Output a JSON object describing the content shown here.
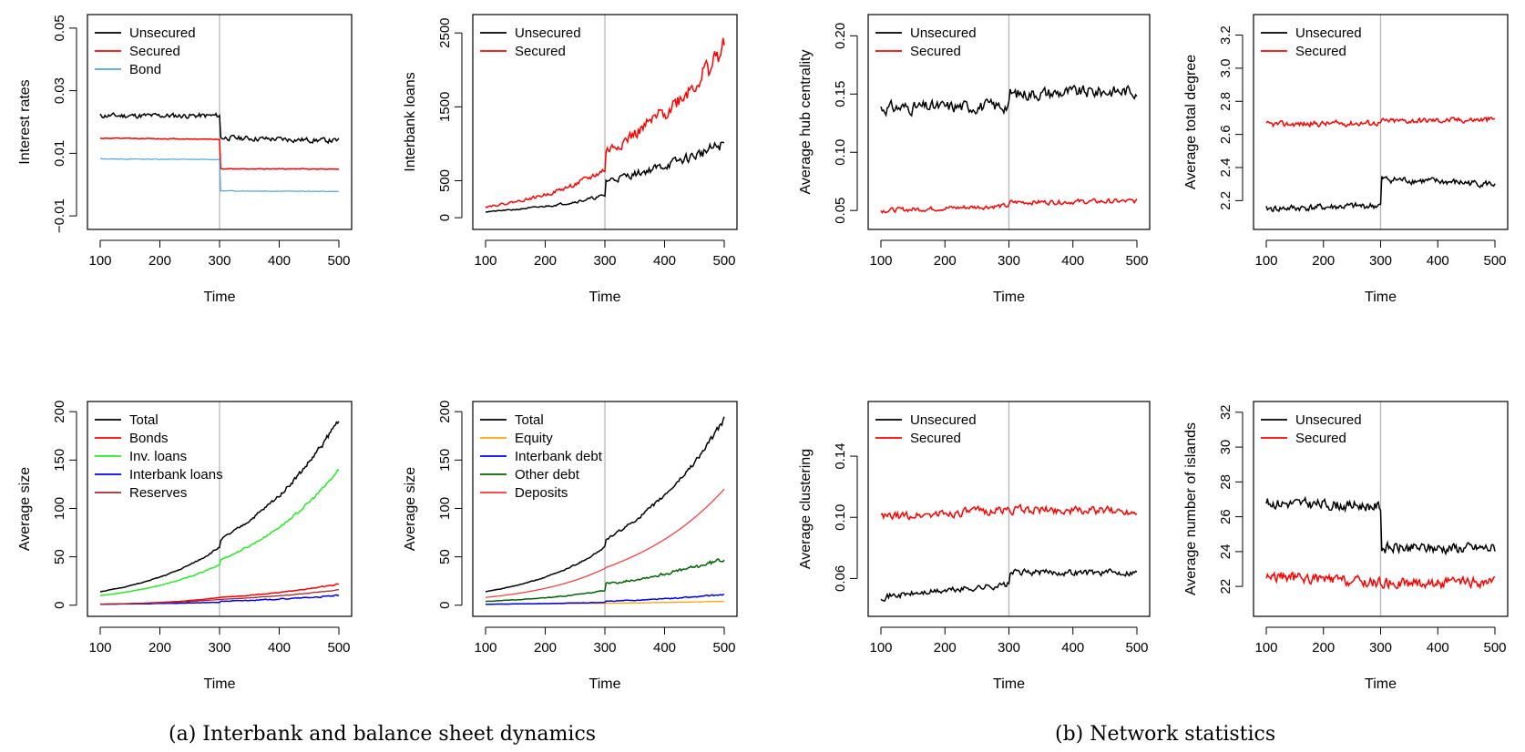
{
  "captions": {
    "a": "(a) Interbank and balance sheet dynamics",
    "b": "(b) Network statistics"
  },
  "chart_data": [
    {
      "type": "line",
      "ylabel": "Interest rates",
      "xlabel": "Time",
      "xlim": [
        100,
        500
      ],
      "xticks": [
        100,
        200,
        300,
        400,
        500
      ],
      "ylim": [
        -0.012,
        0.052
      ],
      "yticks": [
        -0.01,
        0.01,
        0.03,
        0.05
      ],
      "ytick_labels": [
        "−0.01",
        "0.01",
        "0.03",
        "0.05"
      ],
      "vline": 300,
      "legend_position": "top-left",
      "series": [
        {
          "name": "Unsecured",
          "color": "#000000",
          "width": 1.5,
          "pre": 0.022,
          "post": 0.015,
          "start": 0.022,
          "end": 0.014,
          "noise": 0.0012,
          "seed": 11
        },
        {
          "name": "Secured",
          "color": "#ff0000",
          "width": 1.5,
          "pre": 0.0145,
          "post": 0.005,
          "start": 0.0148,
          "end": 0.005,
          "noise": 0.0002,
          "seed": 12
        },
        {
          "name": "Bond",
          "color": "#4da6e0",
          "width": 1.2,
          "pre": 0.008,
          "post": -0.002,
          "start": 0.0082,
          "end": -0.0022,
          "noise": 0.00015,
          "seed": 13
        }
      ]
    },
    {
      "type": "line",
      "ylabel": "Interbank loans",
      "xlabel": "Time",
      "xlim": [
        100,
        500
      ],
      "xticks": [
        100,
        200,
        300,
        400,
        500
      ],
      "ylim": [
        -60,
        2650
      ],
      "yticks": [
        0,
        500,
        1500,
        2500
      ],
      "ytick_labels": [
        "0",
        "500",
        "1500",
        "2500"
      ],
      "vline": 300,
      "legend_position": "top-left",
      "series": [
        {
          "name": "Unsecured",
          "color": "#000000",
          "width": 1.5,
          "start": 80,
          "pre": 300,
          "post": 500,
          "end": 1000,
          "noise": 0.12,
          "relative": true,
          "seed": 21
        },
        {
          "name": "Secured",
          "color": "#ff0000",
          "width": 1.5,
          "start": 150,
          "pre": 650,
          "post": 900,
          "end": 2300,
          "noise": 0.11,
          "relative": true,
          "seed": 22
        }
      ]
    },
    {
      "type": "line",
      "ylabel": "Average hub centrality",
      "xlabel": "Time",
      "xlim": [
        100,
        500
      ],
      "xticks": [
        100,
        200,
        300,
        400,
        500
      ],
      "ylim": [
        0.04,
        0.212
      ],
      "yticks": [
        0.05,
        0.1,
        0.15,
        0.2
      ],
      "ytick_labels": [
        "0.05",
        "0.10",
        "0.15",
        "0.20"
      ],
      "vline": 300,
      "legend_position": "top-left",
      "series": [
        {
          "name": "Unsecured",
          "color": "#000000",
          "width": 1.5,
          "start": 0.138,
          "pre": 0.14,
          "post": 0.15,
          "end": 0.153,
          "noise": 0.008,
          "seed": 31
        },
        {
          "name": "Secured",
          "color": "#ff0000",
          "width": 1.5,
          "start": 0.05,
          "pre": 0.054,
          "post": 0.057,
          "end": 0.058,
          "noise": 0.003,
          "seed": 32
        }
      ]
    },
    {
      "type": "line",
      "ylabel": "Average total degree",
      "xlabel": "Time",
      "xlim": [
        100,
        500
      ],
      "xticks": [
        100,
        200,
        300,
        400,
        500
      ],
      "ylim": [
        2.07,
        3.28
      ],
      "yticks": [
        2.2,
        2.4,
        2.6,
        2.8,
        3.0,
        3.2
      ],
      "ytick_labels": [
        "2.2",
        "2.4",
        "2.6",
        "2.8",
        "3.0",
        "3.2"
      ],
      "vline": 300,
      "legend_position": "top-left",
      "series": [
        {
          "name": "Unsecured",
          "color": "#000000",
          "width": 1.5,
          "start": 2.15,
          "pre": 2.17,
          "post": 2.33,
          "end": 2.3,
          "noise": 0.03,
          "seed": 41
        },
        {
          "name": "Secured",
          "color": "#ff0000",
          "width": 1.5,
          "start": 2.66,
          "pre": 2.67,
          "post": 2.68,
          "end": 2.69,
          "noise": 0.025,
          "seed": 42
        }
      ]
    },
    {
      "type": "line",
      "ylabel": "Average size",
      "xlabel": "Time",
      "xlim": [
        100,
        500
      ],
      "xticks": [
        100,
        200,
        300,
        400,
        500
      ],
      "ylim": [
        -4,
        203
      ],
      "yticks": [
        0,
        50,
        100,
        150,
        200
      ],
      "ytick_labels": [
        "0",
        "50",
        "100",
        "150",
        "200"
      ],
      "vline": 300,
      "legend_position": "top-left",
      "series": [
        {
          "name": "Total",
          "color": "#000000",
          "width": 1.5,
          "start": 14,
          "pre": 60,
          "post": 68,
          "end": 192,
          "noise": 0.025,
          "relative": true,
          "seed": 51
        },
        {
          "name": "Bonds",
          "color": "#ff0000",
          "width": 1.5,
          "start": 1,
          "pre": 8,
          "post": 8,
          "end": 22,
          "noise": 0.04,
          "relative": true,
          "seed": 52
        },
        {
          "name": "Inv. loans",
          "color": "#22ee22",
          "width": 1.5,
          "start": 10,
          "pre": 42,
          "post": 47,
          "end": 140,
          "noise": 0.02,
          "relative": true,
          "seed": 53
        },
        {
          "name": "Interbank loans",
          "color": "#0000ff",
          "width": 1.5,
          "start": 1,
          "pre": 3,
          "post": 4,
          "end": 10,
          "noise": 0.12,
          "relative": true,
          "seed": 54
        },
        {
          "name": "Reserves",
          "color": "#a52a2a",
          "width": 1.3,
          "start": 1,
          "pre": 6,
          "post": 6,
          "end": 16,
          "noise": 0.03,
          "relative": true,
          "seed": 55
        }
      ]
    },
    {
      "type": "line",
      "ylabel": "Average size",
      "xlabel": "Time",
      "xlim": [
        100,
        500
      ],
      "xticks": [
        100,
        200,
        300,
        400,
        500
      ],
      "ylim": [
        -4,
        203
      ],
      "yticks": [
        0,
        50,
        100,
        150,
        200
      ],
      "ytick_labels": [
        "0",
        "50",
        "100",
        "150",
        "200"
      ],
      "vline": 300,
      "legend_position": "top-left",
      "series": [
        {
          "name": "Total",
          "color": "#000000",
          "width": 1.5,
          "start": 14,
          "pre": 60,
          "post": 68,
          "end": 192,
          "noise": 0.025,
          "relative": true,
          "seed": 61
        },
        {
          "name": "Equity",
          "color": "#ffa500",
          "width": 1.3,
          "start": 1,
          "pre": 2,
          "post": 2,
          "end": 4,
          "noise": 0.05,
          "relative": true,
          "seed": 62
        },
        {
          "name": "Interbank debt",
          "color": "#0000ff",
          "width": 1.5,
          "start": 1,
          "pre": 3,
          "post": 4,
          "end": 11,
          "noise": 0.12,
          "relative": true,
          "seed": 63
        },
        {
          "name": "Other debt",
          "color": "#006400",
          "width": 1.5,
          "start": 4,
          "pre": 15,
          "post": 22,
          "end": 48,
          "noise": 0.07,
          "relative": true,
          "seed": 64
        },
        {
          "name": "Deposits",
          "color": "#ff3030",
          "width": 1.2,
          "start": 8,
          "pre": 38,
          "post": 39,
          "end": 120,
          "noise": 0.0,
          "relative": true,
          "seed": 65
        }
      ]
    },
    {
      "type": "line",
      "ylabel": "Average clustering",
      "xlabel": "Time",
      "xlim": [
        100,
        500
      ],
      "xticks": [
        100,
        200,
        300,
        400,
        500
      ],
      "ylim": [
        0.04,
        0.171
      ],
      "yticks": [
        0.06,
        0.1,
        0.14
      ],
      "ytick_labels": [
        "0.06",
        "0.10",
        "0.14"
      ],
      "vline": 300,
      "legend_position": "top-left",
      "series": [
        {
          "name": "Unsecured",
          "color": "#000000",
          "width": 1.5,
          "start": 0.048,
          "pre": 0.056,
          "post": 0.064,
          "end": 0.064,
          "noise": 0.003,
          "seed": 71
        },
        {
          "name": "Secured",
          "color": "#ff0000",
          "width": 1.5,
          "start": 0.1,
          "pre": 0.105,
          "post": 0.105,
          "end": 0.104,
          "noise": 0.004,
          "seed": 72
        }
      ]
    },
    {
      "type": "line",
      "ylabel": "Average number of islands",
      "xlabel": "Time",
      "xlim": [
        100,
        500
      ],
      "xticks": [
        100,
        200,
        300,
        400,
        500
      ],
      "ylim": [
        20.7,
        32.2
      ],
      "yticks": [
        22,
        24,
        26,
        28,
        30,
        32
      ],
      "ytick_labels": [
        "22",
        "24",
        "26",
        "28",
        "30",
        "32"
      ],
      "vline": 300,
      "legend_position": "top-left",
      "series": [
        {
          "name": "Unsecured",
          "color": "#000000",
          "width": 1.5,
          "start": 26.8,
          "pre": 26.6,
          "post": 24.2,
          "end": 24.2,
          "noise": 0.45,
          "seed": 81
        },
        {
          "name": "Secured",
          "color": "#ff0000",
          "width": 1.5,
          "start": 22.6,
          "pre": 22.2,
          "post": 22.2,
          "end": 22.2,
          "noise": 0.45,
          "seed": 82
        }
      ]
    }
  ]
}
